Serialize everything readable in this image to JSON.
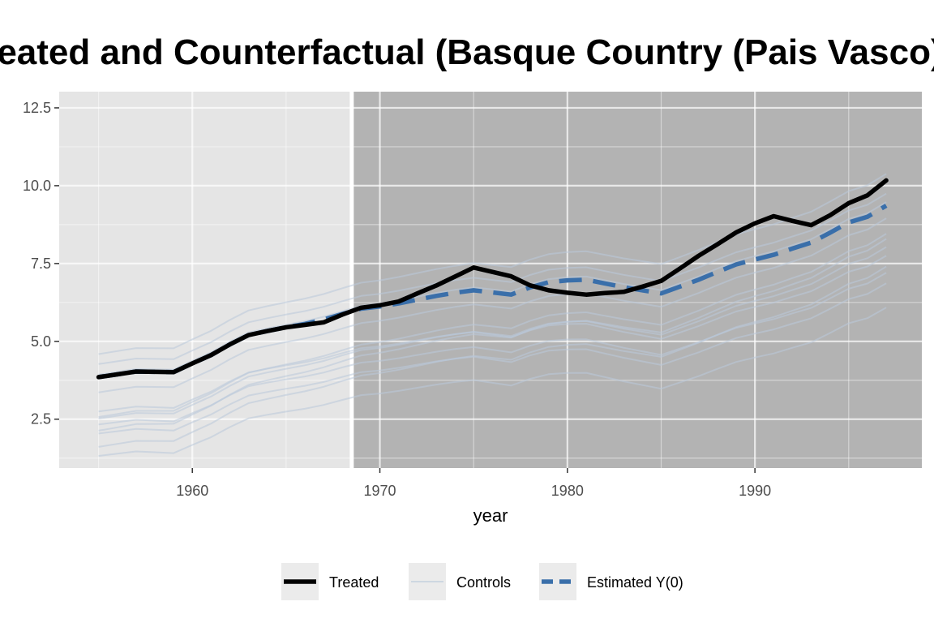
{
  "chart_data": {
    "type": "line",
    "title": "Treated and Counterfactual (Basque Country (Pais Vasco))",
    "xlabel": "year",
    "ylabel": "",
    "xlim": [
      1952.9,
      1998.9
    ],
    "ylim": [
      0.93,
      13.02
    ],
    "x_ticks": [
      1960,
      1970,
      1980,
      1990
    ],
    "x_tick_labels": [
      "1960",
      "1970",
      "1980",
      "1990"
    ],
    "y_ticks": [
      2.5,
      5.0,
      7.5,
      10.0,
      12.5
    ],
    "y_tick_labels": [
      "2.5",
      "5.0",
      "7.5",
      "10.0",
      "12.5"
    ],
    "treatment_start": 1968.5,
    "grid": true,
    "legend_position": "bottom",
    "x": [
      1955,
      1956,
      1957,
      1958,
      1959,
      1960,
      1961,
      1962,
      1963,
      1964,
      1965,
      1966,
      1967,
      1968,
      1969,
      1970,
      1971,
      1972,
      1973,
      1974,
      1975,
      1976,
      1977,
      1978,
      1979,
      1980,
      1981,
      1982,
      1983,
      1984,
      1985,
      1986,
      1987,
      1988,
      1989,
      1990,
      1991,
      1992,
      1993,
      1994,
      1995,
      1996,
      1997
    ],
    "series": [
      {
        "name": "Treated",
        "role": "treated",
        "color": "#000000",
        "values": [
          3.85,
          3.94,
          4.03,
          4.02,
          4.01,
          4.29,
          4.56,
          4.9,
          5.2,
          5.33,
          5.45,
          5.53,
          5.61,
          5.86,
          6.08,
          6.16,
          6.28,
          6.54,
          6.79,
          7.08,
          7.37,
          7.23,
          7.09,
          6.8,
          6.64,
          6.56,
          6.5,
          6.55,
          6.59,
          6.76,
          6.94,
          7.34,
          7.75,
          8.12,
          8.5,
          8.79,
          9.02,
          8.87,
          8.73,
          9.05,
          9.44,
          9.69,
          10.17
        ]
      },
      {
        "name": "Estimated Y(0)",
        "role": "counterfactual",
        "color": "#3a6faa",
        "values": [
          3.85,
          3.94,
          4.03,
          4.02,
          4.01,
          4.29,
          4.56,
          4.9,
          5.2,
          5.33,
          5.45,
          5.56,
          5.7,
          5.88,
          6.05,
          6.12,
          6.22,
          6.34,
          6.46,
          6.56,
          6.64,
          6.57,
          6.5,
          6.73,
          6.9,
          6.96,
          6.98,
          6.86,
          6.74,
          6.64,
          6.54,
          6.76,
          6.98,
          7.23,
          7.47,
          7.63,
          7.78,
          7.98,
          8.17,
          8.49,
          8.82,
          9.0,
          9.36
        ]
      }
    ],
    "controls": {
      "name": "Controls",
      "color": "#b9c9da",
      "offsets": [
        0.74,
        0.42,
        0.08,
        -0.49,
        -1.1,
        -1.33,
        -1.28,
        -1.52,
        -1.72,
        -1.81,
        -2.24,
        -2.53
      ],
      "slopes": [
        0.009,
        -0.002,
        0.01,
        -0.004,
        0.011,
        0.0,
        -0.007,
        0.01,
        -0.009,
        0.009,
        -0.003,
        0.007
      ]
    }
  },
  "legend": [
    {
      "key": "treated",
      "label": "Treated"
    },
    {
      "key": "controls",
      "label": "Controls"
    },
    {
      "key": "counterfactual",
      "label": "Estimated Y(0)"
    }
  ]
}
